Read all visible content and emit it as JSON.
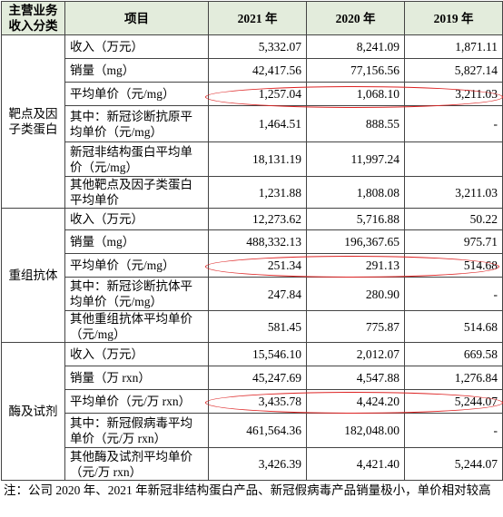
{
  "header": [
    "主营业务收入分类",
    "项目",
    "2021 年",
    "2020 年",
    "2019 年"
  ],
  "groups": [
    {
      "name": "靶点及因子类蛋白",
      "rows": [
        {
          "item": "收入（万元）",
          "values": [
            "5,332.07",
            "8,241.09",
            "1,871.11"
          ]
        },
        {
          "item": "销量（mg）",
          "values": [
            "42,417.56",
            "77,156.56",
            "5,827.14"
          ]
        },
        {
          "item": "平均单价（元/mg）",
          "values": [
            "1,257.04",
            "1,068.10",
            "3,211.03"
          ]
        },
        {
          "item": "其中：新冠诊断抗原平均单价（元/mg）",
          "values": [
            "1,464.51",
            "888.55",
            "-"
          ]
        },
        {
          "item": "新冠非结构蛋白平均单价（元/mg）",
          "values": [
            "18,131.19",
            "11,997.24",
            null
          ]
        },
        {
          "item": "其他靶点及因子类蛋白平均单价",
          "values": [
            "1,231.88",
            "1,808.08",
            "3,211.03"
          ]
        }
      ]
    },
    {
      "name": "重组抗体",
      "rows": [
        {
          "item": "收入（万元）",
          "values": [
            "12,273.62",
            "5,716.88",
            "50.22"
          ]
        },
        {
          "item": "销量（mg）",
          "values": [
            "488,332.13",
            "196,367.65",
            "975.71"
          ]
        },
        {
          "item": "平均单价（元/mg）",
          "values": [
            "251.34",
            "291.13",
            "514.68"
          ]
        },
        {
          "item": "其中：新冠诊断抗体平均单价（元/mg）",
          "values": [
            "247.84",
            "280.90",
            "-"
          ]
        },
        {
          "item": "其他重组抗体平均单价（元/mg）",
          "values": [
            "581.45",
            "775.87",
            "514.68"
          ]
        }
      ]
    },
    {
      "name": "酶及试剂",
      "rows": [
        {
          "item": "收入（万元）",
          "values": [
            "15,546.10",
            "2,012.07",
            "669.58"
          ]
        },
        {
          "item": "销量（万 rxn）",
          "values": [
            "45,247.69",
            "4,547.88",
            "1,276.84"
          ]
        },
        {
          "item": "平均单价（元/万 rxn）",
          "values": [
            "3,435.78",
            "4,424.20",
            "5,244.07"
          ]
        },
        {
          "item": "其中：新冠假病毒平均单价（元/万 rxn）",
          "values": [
            "461,564.36",
            "182,048.00",
            "-"
          ]
        },
        {
          "item": "其他酶及试剂平均单价（元/万 rxn）",
          "values": [
            "3,426.39",
            "4,421.40",
            "5,244.07"
          ]
        }
      ]
    }
  ],
  "note": "注：公司 2020 年、2021 年新冠非结构蛋白产品、新冠假病毒产品销量极小，单价相对较高"
}
